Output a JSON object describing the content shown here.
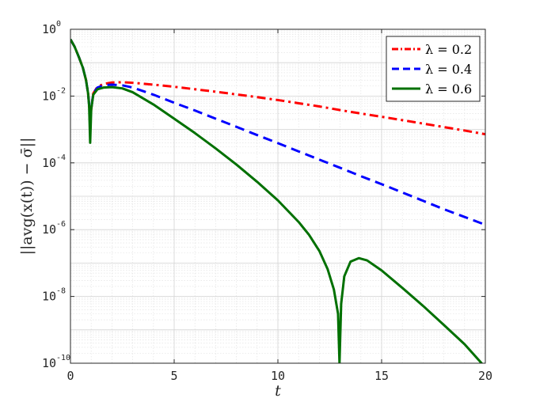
{
  "chart_data": {
    "type": "line",
    "xlabel": "t",
    "ylabel": "||avg(x(t)) − σ̄||",
    "xlim": [
      0,
      20
    ],
    "ylim": [
      1e-10,
      1
    ],
    "yscale": "log",
    "grid": true,
    "minor_grid": true,
    "legend_position": "top-right",
    "x_ticks": [
      0,
      5,
      10,
      15,
      20
    ],
    "x_tick_labels": [
      "0",
      "5",
      "10",
      "15",
      "20"
    ],
    "y_ticks": [
      1,
      0.01,
      0.0001,
      1e-06,
      1e-08,
      1e-10
    ],
    "y_tick_labels": [
      {
        "base": "10",
        "exp": "0"
      },
      {
        "base": "10",
        "exp": "-2"
      },
      {
        "base": "10",
        "exp": "-4"
      },
      {
        "base": "10",
        "exp": "-6"
      },
      {
        "base": "10",
        "exp": "-8"
      },
      {
        "base": "10",
        "exp": "-10"
      }
    ],
    "series": [
      {
        "name": "λ = 0.2",
        "color": "#ff0000",
        "style": "dashdot",
        "points": [
          [
            0,
            0.5
          ],
          [
            0.2,
            0.3
          ],
          [
            0.4,
            0.15
          ],
          [
            0.6,
            0.07
          ],
          [
            0.75,
            0.03
          ],
          [
            0.85,
            0.012
          ],
          [
            0.9,
            0.0055
          ],
          [
            0.95,
            0.0016
          ],
          [
            1.0,
            0.004
          ],
          [
            1.1,
            0.012
          ],
          [
            1.3,
            0.019
          ],
          [
            1.6,
            0.023
          ],
          [
            2,
            0.0255
          ],
          [
            2.5,
            0.026
          ],
          [
            3,
            0.025
          ],
          [
            4,
            0.022
          ],
          [
            5,
            0.019
          ],
          [
            6,
            0.016
          ],
          [
            7,
            0.0135
          ],
          [
            8,
            0.0112
          ],
          [
            9,
            0.0093
          ],
          [
            10,
            0.0076
          ],
          [
            11,
            0.0061
          ],
          [
            12,
            0.0049
          ],
          [
            13,
            0.0038
          ],
          [
            14,
            0.003
          ],
          [
            15,
            0.0024
          ],
          [
            16,
            0.0019
          ],
          [
            17,
            0.0015
          ],
          [
            18,
            0.00118
          ],
          [
            19,
            0.00093
          ],
          [
            20,
            0.00072
          ]
        ]
      },
      {
        "name": "λ = 0.4",
        "color": "#0000ff",
        "style": "dashed",
        "points": [
          [
            0,
            0.5
          ],
          [
            0.2,
            0.3
          ],
          [
            0.4,
            0.15
          ],
          [
            0.6,
            0.07
          ],
          [
            0.75,
            0.03
          ],
          [
            0.85,
            0.012
          ],
          [
            0.9,
            0.0055
          ],
          [
            0.95,
            0.0015
          ],
          [
            1.0,
            0.004
          ],
          [
            1.1,
            0.012
          ],
          [
            1.3,
            0.018
          ],
          [
            1.6,
            0.021
          ],
          [
            2,
            0.022
          ],
          [
            2.5,
            0.021
          ],
          [
            3,
            0.018
          ],
          [
            4,
            0.011
          ],
          [
            5,
            0.0063
          ],
          [
            6,
            0.0037
          ],
          [
            7,
            0.0021
          ],
          [
            8,
            0.0012
          ],
          [
            9,
            0.00068
          ],
          [
            10,
            0.00039
          ],
          [
            11,
            0.00022
          ],
          [
            12,
            0.000125
          ],
          [
            13,
            7.1e-05
          ],
          [
            14,
            4e-05
          ],
          [
            15,
            2.3e-05
          ],
          [
            16,
            1.3e-05
          ],
          [
            17,
            7.3e-06
          ],
          [
            18,
            4.1e-06
          ],
          [
            19,
            2.4e-06
          ],
          [
            20,
            1.4e-06
          ]
        ]
      },
      {
        "name": "λ = 0.6",
        "color": "#007000",
        "style": "solid",
        "points": [
          [
            0,
            0.5
          ],
          [
            0.2,
            0.3
          ],
          [
            0.4,
            0.15
          ],
          [
            0.6,
            0.07
          ],
          [
            0.75,
            0.03
          ],
          [
            0.85,
            0.012
          ],
          [
            0.9,
            0.005
          ],
          [
            0.95,
            0.0004
          ],
          [
            1.0,
            0.004
          ],
          [
            1.1,
            0.011
          ],
          [
            1.3,
            0.016
          ],
          [
            1.6,
            0.018
          ],
          [
            2,
            0.0185
          ],
          [
            2.5,
            0.017
          ],
          [
            3,
            0.013
          ],
          [
            4,
            0.0056
          ],
          [
            5,
            0.0021
          ],
          [
            6,
            0.00078
          ],
          [
            7,
            0.00027
          ],
          [
            8,
            8.9e-05
          ],
          [
            9,
            2.7e-05
          ],
          [
            10,
            7.5e-06
          ],
          [
            11,
            1.7e-06
          ],
          [
            11.5,
            7e-07
          ],
          [
            12,
            2.3e-07
          ],
          [
            12.4,
            6.5e-08
          ],
          [
            12.7,
            1.6e-08
          ],
          [
            12.9,
            3e-09
          ],
          [
            12.97,
            1e-10
          ],
          [
            13.05,
            6e-09
          ],
          [
            13.2,
            4e-08
          ],
          [
            13.5,
            1.1e-07
          ],
          [
            13.9,
            1.4e-07
          ],
          [
            14.3,
            1.2e-07
          ],
          [
            15,
            6e-08
          ],
          [
            16,
            1.8e-08
          ],
          [
            17,
            5.2e-09
          ],
          [
            18,
            1.4e-09
          ],
          [
            19,
            3.7e-10
          ],
          [
            20,
            7.5e-11
          ]
        ]
      }
    ]
  }
}
